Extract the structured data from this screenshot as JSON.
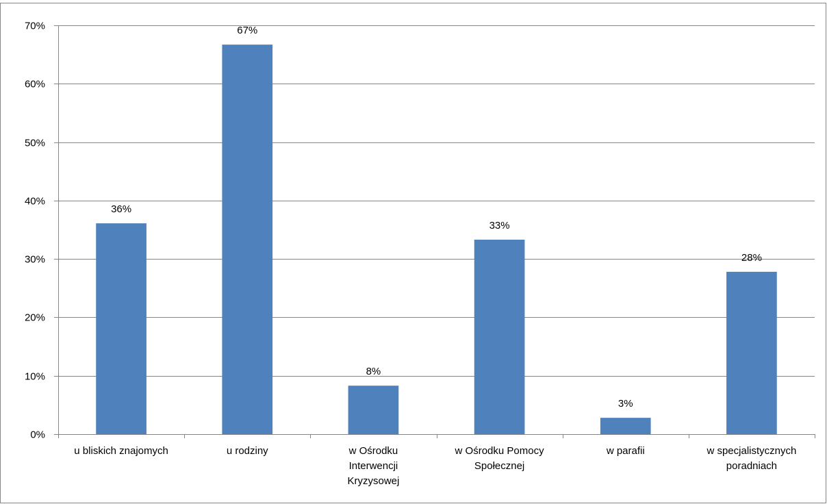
{
  "chart_data": {
    "type": "bar",
    "title": "",
    "xlabel": "",
    "ylabel": "",
    "categories": [
      [
        "u bliskich znajomych"
      ],
      [
        "u rodziny"
      ],
      [
        "w Ośrodku",
        "Interwencji",
        "Kryzysowej"
      ],
      [
        "w Ośrodku Pomocy",
        "Społecznej"
      ],
      [
        "w parafii"
      ],
      [
        "w specjalistycznych",
        "poradniach"
      ]
    ],
    "values": [
      36,
      67,
      8,
      33,
      3,
      28
    ],
    "value_precise": [
      36.1,
      66.7,
      8.3,
      33.3,
      2.8,
      27.8
    ],
    "data_labels": [
      "36%",
      "67%",
      "8%",
      "33%",
      "3%",
      "28%"
    ],
    "ylim": [
      0,
      70
    ],
    "yticks": [
      0,
      10,
      20,
      30,
      40,
      50,
      60,
      70
    ],
    "ytick_labels": [
      "0%",
      "10%",
      "20%",
      "30%",
      "40%",
      "50%",
      "60%",
      "70%"
    ],
    "grid": true,
    "legend": "none",
    "bar_color": "#4f81bd",
    "grid_color": "#868686"
  }
}
